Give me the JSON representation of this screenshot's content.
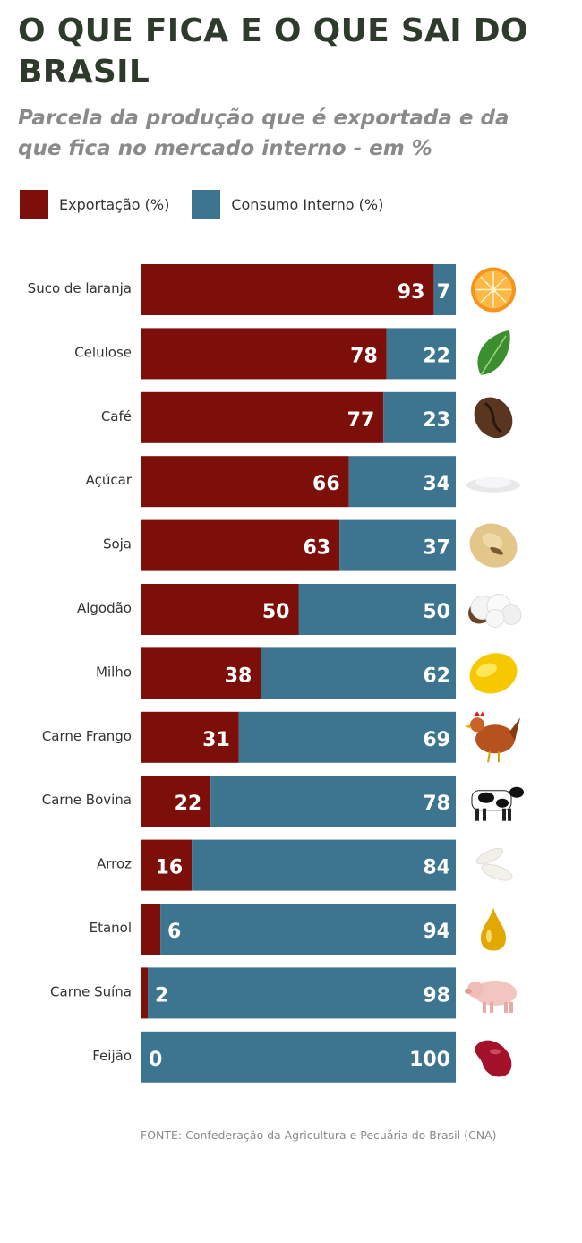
{
  "title": "O QUE FICA E O QUE SAI DO BRASIL",
  "subtitle": "Parcela da produção que é exportada e da que fica no mercado interno - em %",
  "source": "FONTE: Confederação da Agricultura e Pecuária do Brasil (CNA)",
  "colors": {
    "export": "#7d0f0a",
    "domestic": "#3d7591"
  },
  "chart_data": {
    "type": "bar",
    "orientation": "horizontal",
    "stacked": true,
    "xlim": [
      0,
      100
    ],
    "categories": [
      "Suco de laranja",
      "Celulose",
      "Café",
      "Açúcar",
      "Soja",
      "Algodão",
      "Milho",
      "Carne Frango",
      "Carne Bovina",
      "Arroz",
      "Etanol",
      "Carne Suína",
      "Feijão"
    ],
    "series": [
      {
        "name": "Exportação (%)",
        "values": [
          93,
          78,
          77,
          66,
          63,
          50,
          38,
          31,
          22,
          16,
          6,
          2,
          0
        ]
      },
      {
        "name": "Consumo Interno (%)",
        "values": [
          7,
          22,
          23,
          34,
          37,
          50,
          62,
          69,
          78,
          84,
          94,
          98,
          100
        ]
      }
    ],
    "legend_position": "top-left",
    "icons": [
      "orange-icon",
      "leaf-icon",
      "coffee-bean-icon",
      "sugar-icon",
      "soybean-icon",
      "cotton-icon",
      "corn-icon",
      "chicken-icon",
      "cow-icon",
      "rice-icon",
      "ethanol-drop-icon",
      "pig-icon",
      "bean-icon"
    ]
  }
}
